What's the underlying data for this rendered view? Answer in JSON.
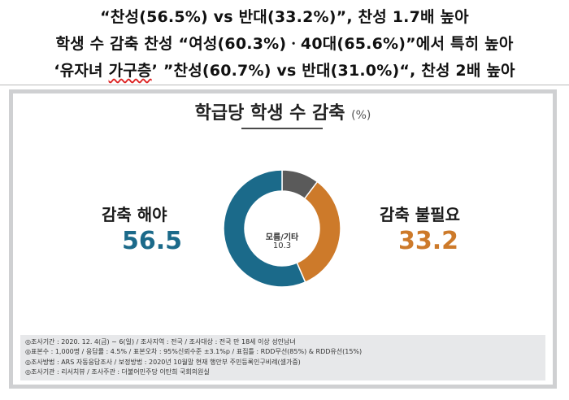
{
  "headlines": {
    "line1": "“찬성(56.5%) vs 반대(33.2%)”, 찬성 1.7배 높아",
    "line2": "학생 수 감축 찬성 “여성(60.3%)ㆍ40대(65.6%)”에서 특히 높아",
    "line3_part1": "‘유자녀 ",
    "line3_underlined": "가구층",
    "line3_part2": "’ ”찬성(60.7%) vs 반대(31.0%)“, 찬성 2배 높아"
  },
  "chart_data": {
    "type": "pie",
    "title": "학급당 학생 수 감축",
    "unit": "(%)",
    "categories": [
      "감축 해야",
      "감축 불필요",
      "모름/기타"
    ],
    "values": [
      56.5,
      33.2,
      10.3
    ],
    "value_labels": [
      "56.5",
      "33.2",
      "10.3"
    ],
    "colors": [
      "#1b6a8a",
      "#cd7a2a",
      "#5a5a5a"
    ]
  },
  "footer": {
    "lines": [
      "◎조사기간 : 2020. 12. 4(금) ~ 6(일)  /  조사지역 : 전국  /  조사대상 : 전국 만 18세 이상 성인남녀",
      "◎표본수 : 1,000명  /  응답률 : 4.5%  /  표본오차 : 95%신뢰수준 ±3.1%p  /  표집틀 : RDD무선(85%) & RDD유선(15%)",
      "◎조사방법 : ARS 자동응답조사  /  보정방법 : 2020년 10월말 현재 행안부 주민등록인구비례(셀가중)",
      "◎조사기관 : 리서치뷰  /  조사주관 : 더불어민주당 이탄희 국회의원실"
    ]
  }
}
